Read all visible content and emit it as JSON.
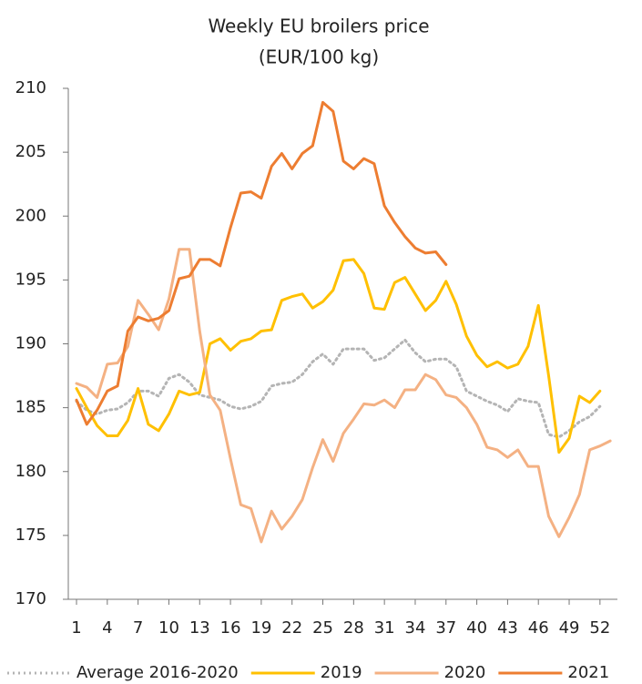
{
  "chart_data": {
    "type": "line",
    "title": "Weekly EU broilers price",
    "subtitle": "(EUR/100 kg)",
    "x": [
      1,
      2,
      3,
      4,
      5,
      6,
      7,
      8,
      9,
      10,
      11,
      12,
      13,
      14,
      15,
      16,
      17,
      18,
      19,
      20,
      21,
      22,
      23,
      24,
      25,
      26,
      27,
      28,
      29,
      30,
      31,
      32,
      33,
      34,
      35,
      36,
      37,
      38,
      39,
      40,
      41,
      42,
      43,
      44,
      45,
      46,
      47,
      48,
      49,
      50,
      51,
      52,
      53
    ],
    "xlim": [
      0.2,
      53.7
    ],
    "xticks": [
      1,
      4,
      7,
      10,
      13,
      16,
      19,
      22,
      25,
      28,
      31,
      34,
      37,
      40,
      43,
      46,
      49,
      52
    ],
    "ylim": [
      170,
      210
    ],
    "yticks": [
      170,
      175,
      180,
      185,
      190,
      195,
      200,
      205,
      210
    ],
    "series": [
      {
        "name": "Average 2016-2020",
        "color": "#b4b4b4",
        "dashed": true,
        "values": [
          185.5,
          184.8,
          184.5,
          184.8,
          184.9,
          185.4,
          186.3,
          186.3,
          185.9,
          187.3,
          187.6,
          187,
          186,
          185.8,
          185.6,
          185.1,
          184.9,
          185.1,
          185.5,
          186.7,
          186.9,
          187,
          187.6,
          188.6,
          189.2,
          188.4,
          189.6,
          189.6,
          189.6,
          188.7,
          188.9,
          189.6,
          190.3,
          189.3,
          188.6,
          188.8,
          188.8,
          188.2,
          186.3,
          185.9,
          185.5,
          185.2,
          184.7,
          185.7,
          185.5,
          185.4,
          182.9,
          182.7,
          183.2,
          183.9,
          184.3,
          185.1,
          null
        ]
      },
      {
        "name": "2019",
        "color": "#ffc000",
        "dashed": false,
        "values": [
          186.5,
          185,
          183.6,
          182.8,
          182.8,
          184,
          186.5,
          183.7,
          183.2,
          184.5,
          186.3,
          186,
          186.2,
          190,
          190.4,
          189.5,
          190.2,
          190.4,
          191,
          191.1,
          193.4,
          193.7,
          193.9,
          192.8,
          193.3,
          194.2,
          196.5,
          196.6,
          195.5,
          192.8,
          192.7,
          194.8,
          195.2,
          193.9,
          192.6,
          193.4,
          194.9,
          193.1,
          190.6,
          189.1,
          188.2,
          188.6,
          188.1,
          188.4,
          189.8,
          193,
          187.5,
          181.5,
          182.6,
          185.9,
          185.4,
          186.3,
          null
        ]
      },
      {
        "name": "2020",
        "color": "#f4b183",
        "dashed": false,
        "values": [
          186.9,
          186.6,
          185.8,
          188.4,
          188.5,
          189.8,
          193.4,
          192.3,
          191.1,
          193.5,
          197.4,
          197.4,
          191,
          186,
          184.8,
          181,
          177.4,
          177.1,
          174.5,
          176.9,
          175.5,
          176.5,
          177.8,
          180.3,
          182.5,
          180.8,
          183,
          184.1,
          185.3,
          185.2,
          185.6,
          185,
          186.4,
          186.4,
          187.6,
          187.2,
          186,
          185.8,
          185,
          183.7,
          181.9,
          181.7,
          181.1,
          181.7,
          180.4,
          180.4,
          176.5,
          174.9,
          176.4,
          178.2,
          181.7,
          182,
          182.4
        ]
      },
      {
        "name": "2021",
        "color": "#ed7d31",
        "dashed": false,
        "values": [
          185.6,
          183.7,
          184.8,
          186.3,
          186.7,
          191,
          192.1,
          191.8,
          192,
          192.6,
          195.1,
          195.3,
          196.6,
          196.6,
          196.1,
          199.1,
          201.8,
          201.9,
          201.4,
          203.9,
          204.9,
          203.7,
          204.9,
          205.5,
          208.9,
          208.2,
          204.3,
          203.7,
          204.5,
          204.1,
          200.8,
          199.5,
          198.4,
          197.5,
          197.1,
          197.2,
          196.2,
          null,
          null,
          null,
          null,
          null,
          null,
          null,
          null,
          null,
          null,
          null,
          null,
          null,
          null,
          null,
          null
        ]
      }
    ],
    "legend": "bottom"
  }
}
